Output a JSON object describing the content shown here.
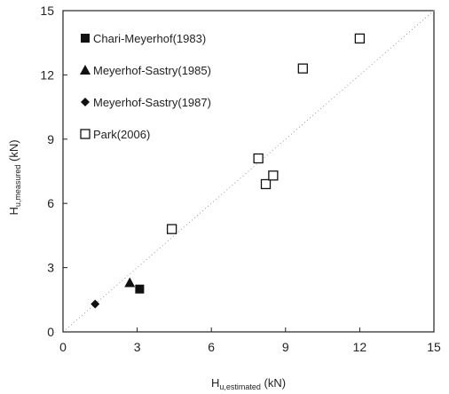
{
  "chart_data": {
    "type": "scatter",
    "title": "",
    "xlabel": {
      "main": "H",
      "sub": "u,estimated",
      "unit": " (kN)"
    },
    "ylabel": {
      "main": "H",
      "sub": "u,measured",
      "unit": " (kN)"
    },
    "xlim": [
      0,
      15
    ],
    "ylim": [
      0,
      15
    ],
    "xticks": [
      "0",
      "3",
      "6",
      "9",
      "12",
      "15"
    ],
    "yticks": [
      "0",
      "3",
      "6",
      "9",
      "12",
      "15"
    ],
    "grid": false,
    "legend_position": "top-left",
    "reference_line": {
      "style": "dotted",
      "points": [
        [
          0,
          0
        ],
        [
          15,
          15
        ]
      ]
    },
    "series": [
      {
        "name": "Chari-Meyerhof(1983)",
        "marker": "filled-square",
        "color": "#111111",
        "points": [
          {
            "x": 3.1,
            "y": 2.0
          }
        ]
      },
      {
        "name": "Meyerhof-Sastry(1985)",
        "marker": "filled-triangle",
        "color": "#111111",
        "points": [
          {
            "x": 2.7,
            "y": 2.3
          }
        ]
      },
      {
        "name": "Meyerhof-Sastry(1987)",
        "marker": "filled-diamond",
        "color": "#111111",
        "points": [
          {
            "x": 1.3,
            "y": 1.3
          }
        ]
      },
      {
        "name": "Park(2006)",
        "marker": "open-square",
        "color": "#111111",
        "points": [
          {
            "x": 4.4,
            "y": 4.8
          },
          {
            "x": 7.9,
            "y": 8.1
          },
          {
            "x": 8.2,
            "y": 6.9
          },
          {
            "x": 8.5,
            "y": 7.3
          },
          {
            "x": 9.7,
            "y": 12.3
          },
          {
            "x": 12.0,
            "y": 13.7
          }
        ]
      }
    ]
  }
}
